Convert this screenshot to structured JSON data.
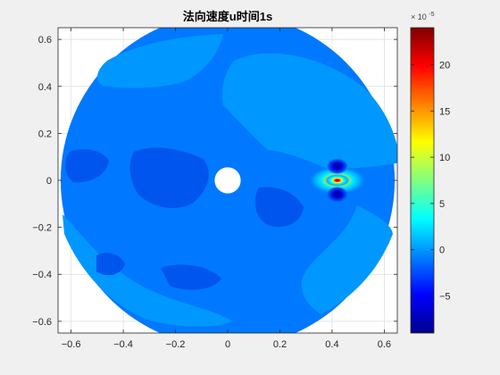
{
  "chart_data": {
    "type": "heatmap",
    "title": "法向速度u时间1s",
    "xlabel": "",
    "ylabel": "",
    "xlim": [
      -0.65,
      0.65
    ],
    "ylim": [
      -0.65,
      0.65
    ],
    "x_ticks": [
      -0.6,
      -0.4,
      -0.2,
      0,
      0.2,
      0.4,
      0.6
    ],
    "y_ticks": [
      -0.6,
      -0.4,
      -0.2,
      0,
      0.2,
      0.4,
      0.6
    ],
    "grid": true,
    "domain": {
      "outer_radius": 0.64,
      "hole_center": [
        0,
        0
      ],
      "hole_radius": 0.05
    },
    "background_level": -1,
    "regions": [
      {
        "level": 0,
        "area": "upper-right band from (0.0,0.5) to (0.62,0.1)"
      },
      {
        "level": 0,
        "area": "upper-left rim band"
      },
      {
        "level": 0,
        "area": "lower-left rim band"
      },
      {
        "level": 0,
        "area": "lower-right rim band"
      },
      {
        "level": -1,
        "area": "central and left interior patches"
      }
    ],
    "hotspot": {
      "center": [
        0.42,
        0.0
      ],
      "peak_value": 22,
      "negative_lobes": [
        [
          0.42,
          0.06
        ],
        [
          0.42,
          -0.06
        ]
      ],
      "negative_value": -8
    },
    "colorbar": {
      "colormap": "jet",
      "min": -9,
      "max": 24,
      "ticks": [
        -5,
        0,
        5,
        10,
        15,
        20
      ],
      "exponent_label": "× 10^{-5}",
      "exponent_base": "× 10",
      "exponent_power": "-5"
    }
  }
}
